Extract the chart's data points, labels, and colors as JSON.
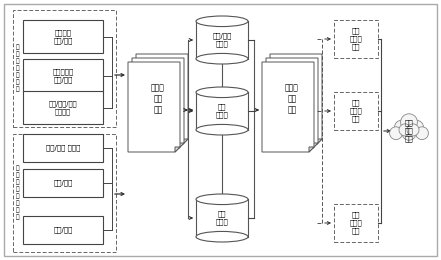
{
  "structured_label": "정\n형\n데\n이\n터\n정\n제",
  "unstructured_label": "비\n정\n형\n데\n이\n터\n정\n제",
  "structured_boxes": [
    "상장기업\n원장/회계",
    "비상장기업\n원장/회계",
    "기업/기술/산업\n메타정보"
  ],
  "unstructured_boxes": [
    "기업/시장 보고서",
    "뉴스/공시",
    "특허/논문"
  ],
  "model_box1": "관계망\n구축\n모델",
  "model_box2": "관계망\n분석\n모델",
  "db_top": "산업/시장\n관계망",
  "db_mid": "기술\n관계망",
  "db_bot": "기업\n관계망",
  "output_top": "사업\n유사도\n추정",
  "output_mid": "기술\n유사도\n추정",
  "output_bot": "기업\n유사도\n추정",
  "cloud_label": "예측\n모델\n활용"
}
